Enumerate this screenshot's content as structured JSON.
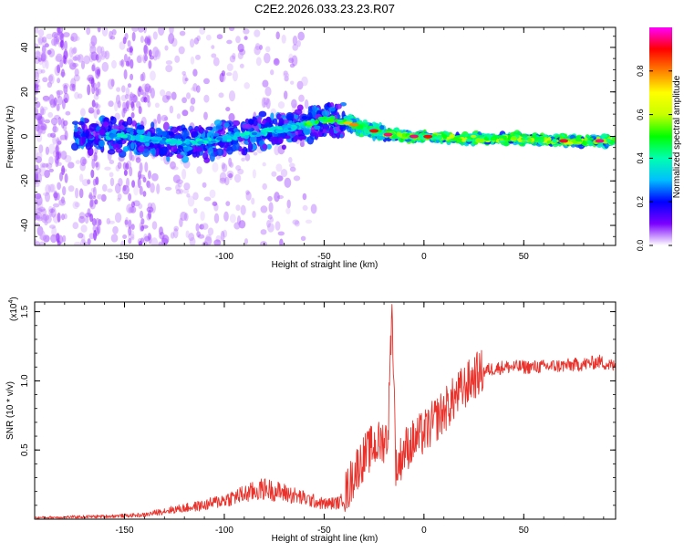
{
  "title": "C2E2.2026.033.23.23.R07",
  "chart_data": [
    {
      "type": "heatmap",
      "title": "C2E2.2026.033.23.23.R07",
      "xlabel": "Height of straight line (km)",
      "ylabel": "Frequency (Hz)",
      "xlim": [
        -195,
        96
      ],
      "ylim": [
        -49,
        49
      ],
      "xticks": [
        -150,
        -100,
        -50,
        0,
        50
      ],
      "yticks": [
        -40,
        -20,
        0,
        20,
        40
      ],
      "colorbar": {
        "label": "Normalized spectral amplitude",
        "range": [
          0,
          1
        ],
        "ticks": [
          "0.0",
          "0.2",
          "0.4",
          "0.6",
          "0.8"
        ],
        "colors": [
          "#ffffff",
          "#7b00ff",
          "#0000ff",
          "#00bfff",
          "#00ffb0",
          "#00ff00",
          "#c8ff00",
          "#ffff00",
          "#ff8000",
          "#ff0000",
          "#ff00ff"
        ]
      },
      "center_frequency_track": [
        {
          "x": -190,
          "y": 2
        },
        {
          "x": -150,
          "y": 0
        },
        {
          "x": -120,
          "y": -3
        },
        {
          "x": -100,
          "y": -1
        },
        {
          "x": -80,
          "y": 2
        },
        {
          "x": -60,
          "y": 5
        },
        {
          "x": -48,
          "y": 8
        },
        {
          "x": -38,
          "y": 6
        },
        {
          "x": -30,
          "y": 4
        },
        {
          "x": -20,
          "y": 1
        },
        {
          "x": -10,
          "y": 0
        },
        {
          "x": 0,
          "y": 0
        },
        {
          "x": 20,
          "y": -1
        },
        {
          "x": 50,
          "y": -1
        },
        {
          "x": 70,
          "y": -2
        },
        {
          "x": 90,
          "y": -2
        }
      ]
    },
    {
      "type": "line",
      "xlabel": "Height of straight line (km)",
      "ylabel": "SNR (10 * v/v)",
      "y_scale_label": "(x10",
      "y_scale_exponent": "4",
      "y_scale_close": ")",
      "xlim": [
        -195,
        96
      ],
      "ylim": [
        0,
        1.57
      ],
      "xticks": [
        -150,
        -100,
        -50,
        0,
        50
      ],
      "yticks": [
        "0.5",
        "1.0",
        "1.5"
      ],
      "series": [
        {
          "name": "SNR",
          "color": "#e8322b",
          "points": [
            {
              "x": -195,
              "y": 0.01
            },
            {
              "x": -160,
              "y": 0.02
            },
            {
              "x": -140,
              "y": 0.03
            },
            {
              "x": -130,
              "y": 0.06
            },
            {
              "x": -120,
              "y": 0.08
            },
            {
              "x": -110,
              "y": 0.1
            },
            {
              "x": -100,
              "y": 0.14
            },
            {
              "x": -90,
              "y": 0.18
            },
            {
              "x": -80,
              "y": 0.22
            },
            {
              "x": -70,
              "y": 0.19
            },
            {
              "x": -60,
              "y": 0.15
            },
            {
              "x": -50,
              "y": 0.11
            },
            {
              "x": -42,
              "y": 0.12
            },
            {
              "x": -38,
              "y": 0.22
            },
            {
              "x": -34,
              "y": 0.36
            },
            {
              "x": -30,
              "y": 0.45
            },
            {
              "x": -26,
              "y": 0.52
            },
            {
              "x": -22,
              "y": 0.55
            },
            {
              "x": -18,
              "y": 0.6
            },
            {
              "x": -16,
              "y": 1.57
            },
            {
              "x": -14,
              "y": 0.35
            },
            {
              "x": -10,
              "y": 0.5
            },
            {
              "x": -6,
              "y": 0.55
            },
            {
              "x": -2,
              "y": 0.6
            },
            {
              "x": 2,
              "y": 0.65
            },
            {
              "x": 6,
              "y": 0.72
            },
            {
              "x": 10,
              "y": 0.78
            },
            {
              "x": 14,
              "y": 0.85
            },
            {
              "x": 18,
              "y": 0.92
            },
            {
              "x": 22,
              "y": 0.98
            },
            {
              "x": 26,
              "y": 1.04
            },
            {
              "x": 32,
              "y": 1.08
            },
            {
              "x": 40,
              "y": 1.1
            },
            {
              "x": 55,
              "y": 1.1
            },
            {
              "x": 70,
              "y": 1.11
            },
            {
              "x": 80,
              "y": 1.12
            },
            {
              "x": 88,
              "y": 1.14
            },
            {
              "x": 96,
              "y": 1.1
            }
          ]
        }
      ]
    }
  ]
}
